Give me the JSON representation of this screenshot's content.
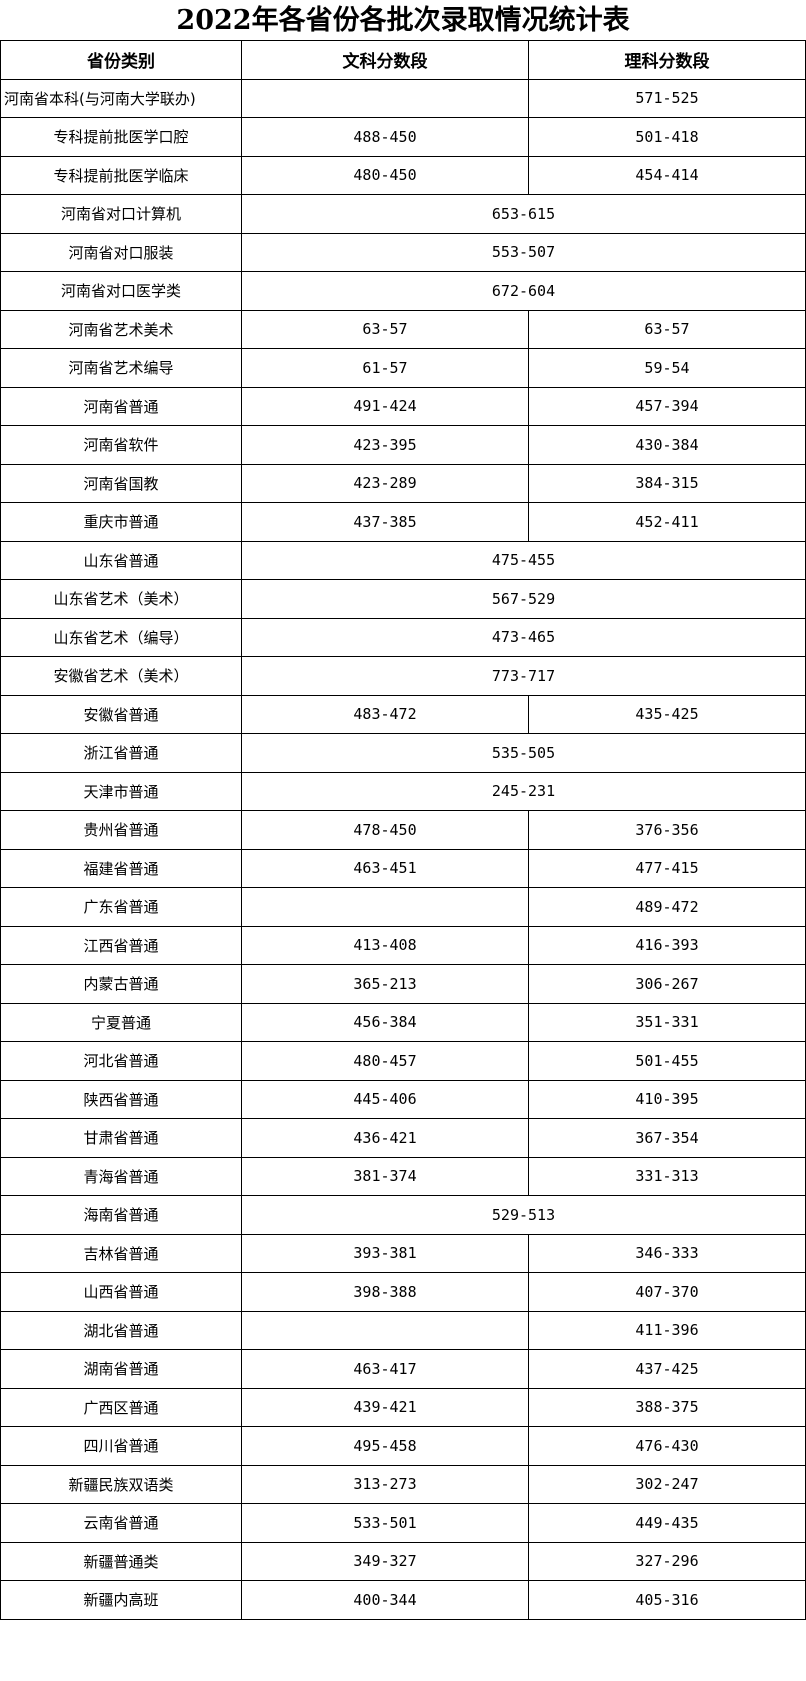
{
  "title": "2022年各省份各批次录取情况统计表",
  "headers": [
    "省份类别",
    "文科分数段",
    "理科分数段"
  ],
  "rows": [
    {
      "category": "河南省本科(与河南大学联办)",
      "arts": "",
      "science": "571-525"
    },
    {
      "category": "专科提前批医学口腔",
      "arts": "488-450",
      "science": "501-418"
    },
    {
      "category": "专科提前批医学临床",
      "arts": "480-450",
      "science": "454-414"
    },
    {
      "category": "河南省对口计算机",
      "merged": "653-615"
    },
    {
      "category": "河南省对口服装",
      "merged": "553-507"
    },
    {
      "category": "河南省对口医学类",
      "merged": "672-604"
    },
    {
      "category": "河南省艺术美术",
      "arts": "63-57",
      "science": "63-57"
    },
    {
      "category": "河南省艺术编导",
      "arts": "61-57",
      "science": "59-54"
    },
    {
      "category": "河南省普通",
      "arts": "491-424",
      "science": "457-394"
    },
    {
      "category": "河南省软件",
      "arts": "423-395",
      "science": "430-384"
    },
    {
      "category": "河南省国教",
      "arts": "423-289",
      "science": "384-315"
    },
    {
      "category": "重庆市普通",
      "arts": "437-385",
      "science": "452-411"
    },
    {
      "category": "山东省普通",
      "merged": "475-455"
    },
    {
      "category": "山东省艺术（美术）",
      "merged": "567-529"
    },
    {
      "category": "山东省艺术（编导）",
      "merged": "473-465"
    },
    {
      "category": "安徽省艺术（美术）",
      "merged": "773-717"
    },
    {
      "category": "安徽省普通",
      "arts": "483-472",
      "science": "435-425"
    },
    {
      "category": "浙江省普通",
      "merged": "535-505"
    },
    {
      "category": "天津市普通",
      "merged": "245-231"
    },
    {
      "category": "贵州省普通",
      "arts": "478-450",
      "science": "376-356"
    },
    {
      "category": "福建省普通",
      "arts": "463-451",
      "science": "477-415"
    },
    {
      "category": "广东省普通",
      "arts": "",
      "science": "489-472"
    },
    {
      "category": "江西省普通",
      "arts": "413-408",
      "science": "416-393"
    },
    {
      "category": "内蒙古普通",
      "arts": "365-213",
      "science": "306-267"
    },
    {
      "category": "宁夏普通",
      "arts": "456-384",
      "science": "351-331"
    },
    {
      "category": "河北省普通",
      "arts": "480-457",
      "science": "501-455"
    },
    {
      "category": "陕西省普通",
      "arts": "445-406",
      "science": "410-395"
    },
    {
      "category": "甘肃省普通",
      "arts": "436-421",
      "science": "367-354"
    },
    {
      "category": "青海省普通",
      "arts": "381-374",
      "science": "331-313"
    },
    {
      "category": "海南省普通",
      "merged": "529-513"
    },
    {
      "category": "吉林省普通",
      "arts": "393-381",
      "science": "346-333"
    },
    {
      "category": "山西省普通",
      "arts": "398-388",
      "science": "407-370"
    },
    {
      "category": "湖北省普通",
      "arts": "",
      "science": "411-396"
    },
    {
      "category": "湖南省普通",
      "arts": "463-417",
      "science": "437-425"
    },
    {
      "category": "广西区普通",
      "arts": "439-421",
      "science": "388-375"
    },
    {
      "category": "四川省普通",
      "arts": "495-458",
      "science": "476-430"
    },
    {
      "category": "新疆民族双语类",
      "arts": "313-273",
      "science": "302-247"
    },
    {
      "category": "云南省普通",
      "arts": "533-501",
      "science": "449-435"
    },
    {
      "category": "新疆普通类",
      "arts": "349-327",
      "science": "327-296"
    },
    {
      "category": "新疆内高班",
      "arts": "400-344",
      "science": "405-316"
    }
  ]
}
